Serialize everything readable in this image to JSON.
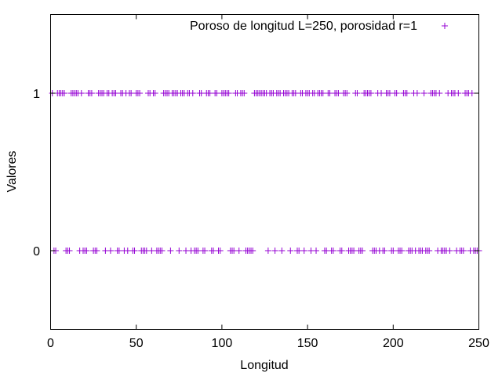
{
  "chart_data": {
    "type": "scatter",
    "title": "",
    "xlabel": "Longitud",
    "ylabel": "Valores",
    "xlim": [
      0,
      250
    ],
    "ylim": [
      -0.5,
      1.5
    ],
    "xticks": [
      0,
      50,
      100,
      150,
      200,
      250
    ],
    "yticks": [
      0,
      1
    ],
    "grid": false,
    "legend_position": "top-right",
    "series": [
      {
        "name": "Poroso de longitud L=250, porosidad r=1",
        "color": "#9400d3",
        "marker": "plus",
        "x": [
          1,
          2,
          3,
          4,
          5,
          6,
          7,
          8,
          9,
          10,
          11,
          12,
          13,
          14,
          15,
          16,
          17,
          18,
          19,
          20,
          21,
          22,
          23,
          24,
          25,
          26,
          27,
          28,
          29,
          30,
          31,
          32,
          33,
          34,
          35,
          36,
          37,
          38,
          39,
          40,
          41,
          42,
          43,
          44,
          45,
          46,
          47,
          48,
          49,
          50,
          51,
          52,
          53,
          54,
          55,
          56,
          57,
          58,
          59,
          60,
          61,
          62,
          63,
          64,
          65,
          66,
          67,
          68,
          69,
          70,
          71,
          72,
          73,
          74,
          75,
          76,
          77,
          78,
          79,
          80,
          81,
          82,
          83,
          84,
          85,
          86,
          87,
          88,
          89,
          90,
          91,
          92,
          93,
          94,
          95,
          96,
          97,
          98,
          99,
          100,
          101,
          102,
          103,
          104,
          105,
          106,
          107,
          108,
          109,
          110,
          111,
          112,
          113,
          114,
          115,
          116,
          117,
          118,
          119,
          120,
          121,
          122,
          123,
          124,
          125,
          126,
          127,
          128,
          129,
          130,
          131,
          132,
          133,
          134,
          135,
          136,
          137,
          138,
          139,
          140,
          141,
          142,
          143,
          144,
          145,
          146,
          147,
          148,
          149,
          150,
          151,
          152,
          153,
          154,
          155,
          156,
          157,
          158,
          159,
          160,
          161,
          162,
          163,
          164,
          165,
          166,
          167,
          168,
          169,
          170,
          171,
          172,
          173,
          174,
          175,
          176,
          177,
          178,
          179,
          180,
          181,
          182,
          183,
          184,
          185,
          186,
          187,
          188,
          189,
          190,
          191,
          192,
          193,
          194,
          195,
          196,
          197,
          198,
          199,
          200,
          201,
          202,
          203,
          204,
          205,
          206,
          207,
          208,
          209,
          210,
          211,
          212,
          213,
          214,
          215,
          216,
          217,
          218,
          219,
          220,
          221,
          222,
          223,
          224,
          225,
          226,
          227,
          228,
          229,
          230,
          231,
          232,
          233,
          234,
          235,
          236,
          237,
          238,
          239,
          240,
          241,
          242,
          243,
          244,
          245,
          246,
          247,
          248,
          249,
          250
        ],
        "y": [
          1,
          0,
          0,
          1,
          1,
          1,
          1,
          1,
          0,
          0,
          0,
          1,
          1,
          1,
          1,
          1,
          0,
          1,
          0,
          0,
          0,
          1,
          1,
          1,
          0,
          0,
          0,
          1,
          1,
          1,
          1,
          0,
          1,
          1,
          0,
          1,
          1,
          1,
          0,
          0,
          1,
          1,
          0,
          1,
          0,
          1,
          1,
          0,
          0,
          1,
          1,
          1,
          0,
          0,
          0,
          0,
          1,
          1,
          0,
          1,
          1,
          0,
          0,
          0,
          0,
          1,
          1,
          1,
          1,
          0,
          1,
          1,
          1,
          1,
          0,
          1,
          1,
          1,
          0,
          1,
          1,
          0,
          1,
          0,
          0,
          0,
          1,
          1,
          0,
          0,
          1,
          1,
          1,
          0,
          0,
          1,
          1,
          0,
          0,
          1,
          1,
          1,
          1,
          1,
          0,
          0,
          0,
          1,
          1,
          0,
          1,
          1,
          1,
          0,
          0,
          0,
          0,
          0,
          1,
          1,
          1,
          1,
          1,
          1,
          1,
          1,
          0,
          1,
          1,
          1,
          0,
          1,
          1,
          1,
          0,
          1,
          1,
          1,
          1,
          0,
          1,
          1,
          1,
          0,
          0,
          1,
          1,
          0,
          1,
          1,
          1,
          0,
          1,
          1,
          0,
          1,
          1,
          1,
          1,
          0,
          0,
          1,
          1,
          0,
          0,
          1,
          1,
          1,
          0,
          0,
          1,
          1,
          1,
          0,
          0,
          0,
          0,
          1,
          1,
          0,
          0,
          0,
          1,
          1,
          1,
          1,
          1,
          0,
          0,
          0,
          1,
          0,
          1,
          0,
          0,
          1,
          1,
          1,
          0,
          0,
          1,
          1,
          0,
          0,
          0,
          1,
          1,
          1,
          0,
          0,
          0,
          1,
          0,
          1,
          0,
          0,
          0,
          1,
          0,
          0,
          0,
          1,
          1,
          1,
          1,
          0,
          1,
          0,
          0,
          0,
          0,
          1,
          0,
          1,
          1,
          1,
          0,
          1,
          0,
          0,
          0,
          1,
          1,
          1,
          0,
          1,
          0,
          0,
          0,
          0
        ]
      }
    ]
  }
}
